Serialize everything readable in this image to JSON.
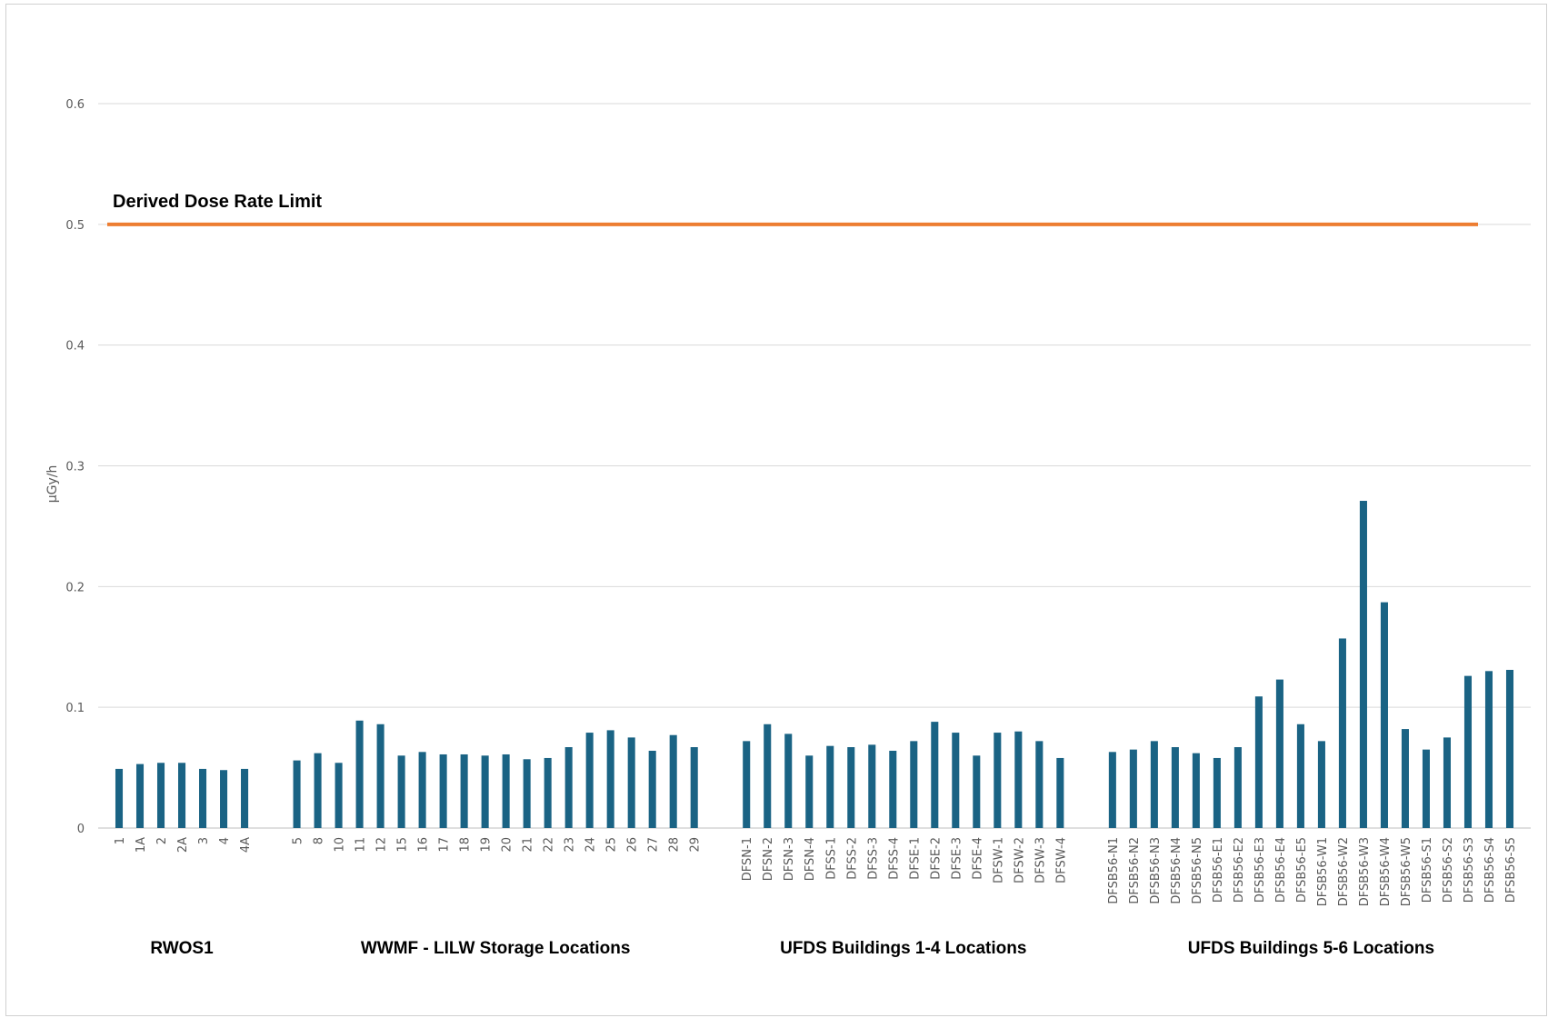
{
  "chart_data": {
    "type": "bar",
    "ylabel": "µGy/h",
    "ylim": [
      0,
      0.6
    ],
    "yticks": [
      "0",
      "0.1",
      "0.2",
      "0.3",
      "0.4",
      "0.5",
      "0.6"
    ],
    "grid": true,
    "bar_color": "#1a6384",
    "limit_line": {
      "label": "Derived Dose Rate Limit",
      "value": 0.5,
      "color": "#ed7d31"
    },
    "groups": [
      {
        "name": "RWOS1",
        "categories": [
          "1",
          "1A",
          "2",
          "2A",
          "3",
          "4",
          "4A"
        ],
        "values": [
          0.049,
          0.053,
          0.054,
          0.054,
          0.049,
          0.048,
          0.049
        ]
      },
      {
        "name": "WWMF - LILW Storage Locations",
        "categories": [
          "5",
          "8",
          "10",
          "11",
          "12",
          "15",
          "16",
          "17",
          "18",
          "19",
          "20",
          "21",
          "22",
          "23",
          "24",
          "25",
          "26",
          "27",
          "28",
          "29"
        ],
        "values": [
          0.056,
          0.062,
          0.054,
          0.089,
          0.086,
          0.06,
          0.063,
          0.061,
          0.061,
          0.06,
          0.061,
          0.057,
          0.058,
          0.067,
          0.079,
          0.081,
          0.075,
          0.064,
          0.077,
          0.067
        ]
      },
      {
        "name": "UFDS Buildings 1-4 Locations",
        "categories": [
          "DFSN-1",
          "DFSN-2",
          "DFSN-3",
          "DFSN-4",
          "DFSS-1",
          "DFSS-2",
          "DFSS-3",
          "DFSS-4",
          "DFSE-1",
          "DFSE-2",
          "DFSE-3",
          "DFSE-4",
          "DFSW-1",
          "DFSW-2",
          "DFSW-3",
          "DFSW-4"
        ],
        "values": [
          0.072,
          0.086,
          0.078,
          0.06,
          0.068,
          0.067,
          0.069,
          0.064,
          0.072,
          0.088,
          0.079,
          0.06,
          0.079,
          0.08,
          0.072,
          0.058
        ]
      },
      {
        "name": "UFDS Buildings 5-6 Locations",
        "categories": [
          "DFSB56-N1",
          "DFSB56-N2",
          "DFSB56-N3",
          "DFSB56-N4",
          "DFSB56-N5",
          "DFSB56-E1",
          "DFSB56-E2",
          "DFSB56-E3",
          "DFSB56-E4",
          "DFSB56-E5",
          "DFSB56-W1",
          "DFSB56-W2",
          "DFSB56-W3",
          "DFSB56-W4",
          "DFSB56-W5",
          "DFSB56-S1",
          "DFSB56-S2",
          "DFSB56-S3",
          "DFSB56-S4",
          "DFSB56-S5"
        ],
        "values": [
          0.063,
          0.065,
          0.072,
          0.067,
          0.062,
          0.058,
          0.067,
          0.109,
          0.123,
          0.086,
          0.072,
          0.157,
          0.271,
          0.187,
          0.082,
          0.065,
          0.075,
          0.126,
          0.13,
          0.131
        ]
      }
    ]
  }
}
